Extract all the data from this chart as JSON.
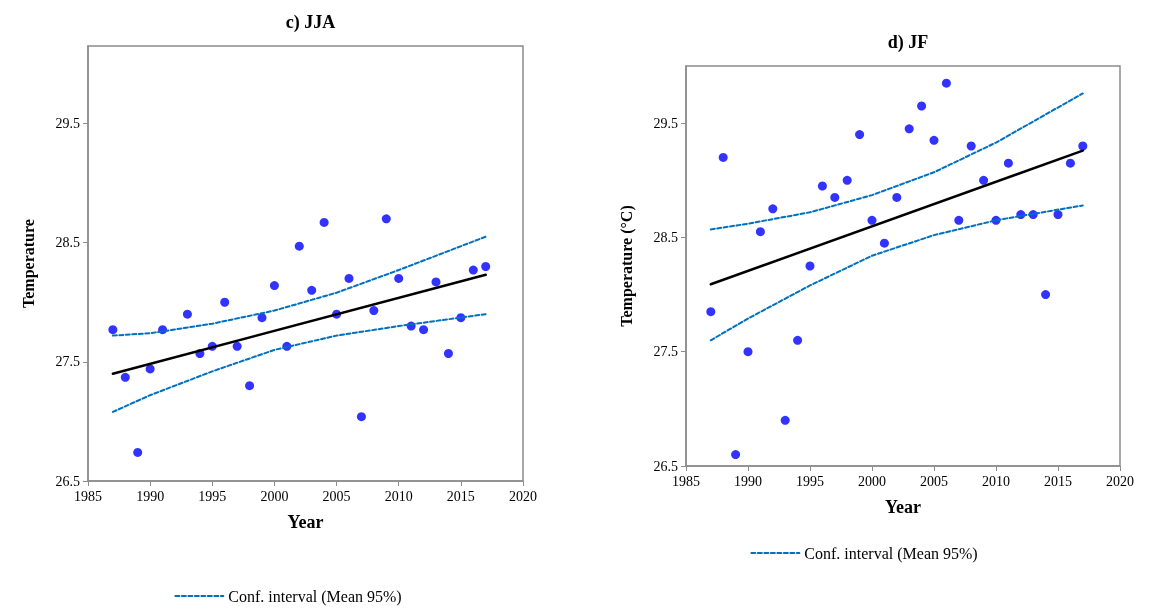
{
  "chart_data": [
    {
      "type": "scatter",
      "title": "c) JJA",
      "xlabel": "Year",
      "ylabel": "Temperature",
      "xlim": [
        1985,
        2020
      ],
      "xticks": [
        1985,
        1990,
        1995,
        2000,
        2005,
        2010,
        2015,
        2020
      ],
      "ylim": [
        26.5,
        30.15
      ],
      "yticks": [
        26.5,
        27.5,
        28.5,
        29.5
      ],
      "grid": false,
      "legend": "bottom",
      "marker": "circle",
      "series": [
        {
          "type": "scatter",
          "color": "#0000ff",
          "x": [
            1987,
            1988,
            1989,
            1990,
            1991,
            1993,
            1994,
            1995,
            1996,
            1997,
            1998,
            1999,
            2000,
            2001,
            2002,
            2003,
            2004,
            2005,
            2006,
            2007,
            2008,
            2009,
            2010,
            2011,
            2012,
            2013,
            2014,
            2015,
            2016,
            2017
          ],
          "values": [
            27.77,
            27.37,
            26.74,
            27.44,
            27.77,
            27.9,
            27.57,
            27.63,
            28.0,
            27.63,
            27.3,
            27.87,
            28.14,
            27.63,
            28.47,
            28.1,
            28.67,
            27.9,
            28.2,
            27.04,
            27.93,
            28.7,
            28.2,
            27.8,
            27.77,
            28.17,
            27.57,
            27.87,
            28.27,
            28.3
          ]
        },
        {
          "type": "line",
          "color": "#000000",
          "marker": "none",
          "x": [
            1987,
            2017
          ],
          "values": [
            27.4,
            28.23
          ]
        },
        {
          "type": "line",
          "name": "Conf. interval (Mean 95%)",
          "color": "#0070c0",
          "line_style": "dashed",
          "marker": "none",
          "x": [
            1987,
            1990,
            1995,
            2000,
            2005,
            2010,
            2017
          ],
          "values": [
            27.72,
            27.74,
            27.82,
            27.93,
            28.08,
            28.27,
            28.55
          ]
        },
        {
          "type": "line",
          "color": "#0070c0",
          "line_style": "dashed",
          "marker": "none",
          "x": [
            1987,
            1990,
            1995,
            2000,
            2005,
            2010,
            2017
          ],
          "values": [
            27.08,
            27.22,
            27.42,
            27.6,
            27.72,
            27.8,
            27.9
          ]
        }
      ]
    },
    {
      "type": "scatter",
      "title": "d) JF",
      "xlabel": "Year",
      "ylabel": "Temperature (°C)",
      "xlim": [
        1985,
        2020
      ],
      "xticks": [
        1985,
        1990,
        1995,
        2000,
        2005,
        2010,
        2015,
        2020
      ],
      "ylim": [
        26.5,
        30.0
      ],
      "yticks": [
        26.5,
        27.5,
        28.5,
        29.5
      ],
      "grid": false,
      "legend": "bottom",
      "marker": "circle",
      "series": [
        {
          "type": "scatter",
          "color": "#0000ff",
          "x": [
            1987,
            1988,
            1989,
            1990,
            1991,
            1992,
            1993,
            1994,
            1995,
            1996,
            1997,
            1998,
            1999,
            2000,
            2001,
            2002,
            2003,
            2004,
            2005,
            2006,
            2007,
            2008,
            2009,
            2010,
            2011,
            2012,
            2013,
            2014,
            2015,
            2016,
            2017
          ],
          "values": [
            27.85,
            29.2,
            26.6,
            27.5,
            28.55,
            28.75,
            26.9,
            27.6,
            28.25,
            28.95,
            28.85,
            29.0,
            29.4,
            28.65,
            28.45,
            28.85,
            29.45,
            29.65,
            29.35,
            29.85,
            28.65,
            29.3,
            29.0,
            28.65,
            29.15,
            28.7,
            28.7,
            28.0,
            28.7,
            29.15,
            29.3
          ]
        },
        {
          "type": "line",
          "color": "#000000",
          "marker": "none",
          "x": [
            1987,
            2017
          ],
          "values": [
            28.09,
            29.26
          ]
        },
        {
          "type": "line",
          "name": "Conf. interval (Mean 95%)",
          "color": "#0070c0",
          "line_style": "dashed",
          "marker": "none",
          "x": [
            1987,
            1990,
            1995,
            2000,
            2005,
            2010,
            2017
          ],
          "values": [
            28.57,
            28.62,
            28.72,
            28.87,
            29.07,
            29.33,
            29.76
          ]
        },
        {
          "type": "line",
          "color": "#0070c0",
          "line_style": "dashed",
          "marker": "none",
          "x": [
            1987,
            1990,
            1995,
            2000,
            2005,
            2010,
            2017
          ],
          "values": [
            27.6,
            27.79,
            28.08,
            28.34,
            28.52,
            28.65,
            28.78
          ]
        }
      ]
    }
  ]
}
